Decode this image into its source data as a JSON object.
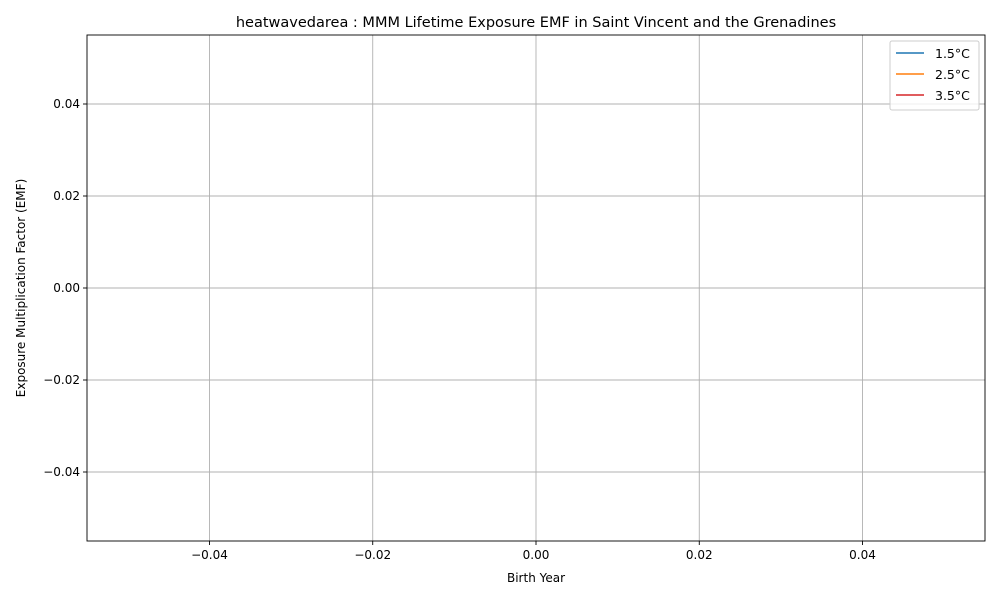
{
  "chart_data": {
    "type": "line",
    "title": "heatwavedarea : MMM Lifetime Exposure EMF in Saint Vincent and the Grenadines",
    "xlabel": "Birth Year",
    "ylabel": "Exposure Multiplication Factor (EMF)",
    "xlim": [
      -0.055,
      0.055
    ],
    "ylim": [
      -0.055,
      0.055
    ],
    "x_ticks": [
      -0.04,
      -0.02,
      0.0,
      0.02,
      0.04
    ],
    "x_tick_labels": [
      "−0.04",
      "−0.02",
      "0.00",
      "0.02",
      "0.04"
    ],
    "y_ticks": [
      -0.04,
      -0.02,
      0.0,
      0.02,
      0.04
    ],
    "y_tick_labels": [
      "−0.04",
      "−0.02",
      "0.00",
      "0.02",
      "0.04"
    ],
    "grid": true,
    "legend_position": "top-right",
    "series": [
      {
        "name": "1.5°C",
        "color": "#1f77b4",
        "x": [],
        "y": []
      },
      {
        "name": "2.5°C",
        "color": "#ff7f0e",
        "x": [],
        "y": []
      },
      {
        "name": "3.5°C",
        "color": "#d62728",
        "x": [],
        "y": []
      }
    ]
  }
}
